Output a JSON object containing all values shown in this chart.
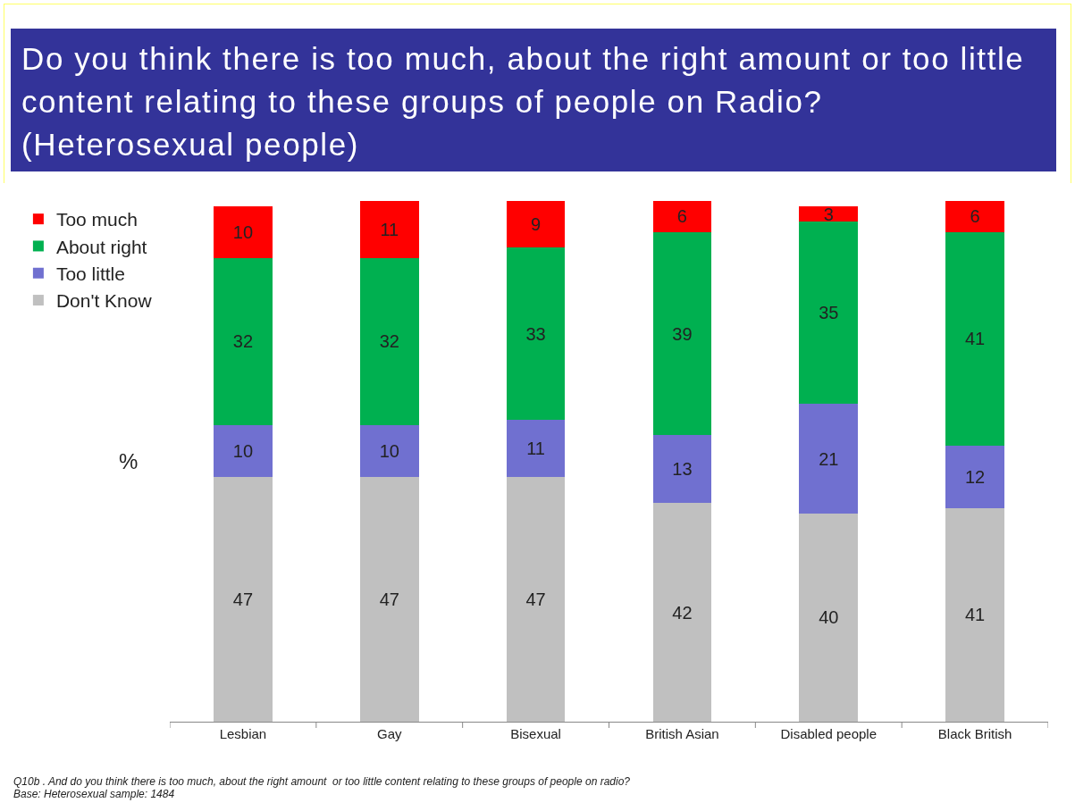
{
  "chart_data": {
    "type": "bar",
    "stacked": true,
    "title": "Do you think there is too much, about the right amount or too little content relating to these groups of people on Radio? (Heterosexual people)",
    "ylabel": "%",
    "categories": [
      "Lesbian",
      "Gay",
      "Bisexual",
      "British Asian",
      "Disabled people",
      "Black British"
    ],
    "series": [
      {
        "name": "Don't Know",
        "color": "#c0c0c0",
        "values": [
          47,
          47,
          47,
          42,
          40,
          41
        ]
      },
      {
        "name": "Too little",
        "color": "#7070d0",
        "values": [
          10,
          10,
          11,
          13,
          21,
          12
        ]
      },
      {
        "name": "About right",
        "color": "#00b050",
        "values": [
          32,
          32,
          33,
          39,
          35,
          41
        ]
      },
      {
        "name": "Too much",
        "color": "#ff0000",
        "values": [
          10,
          11,
          9,
          6,
          3,
          6
        ]
      }
    ],
    "ylim": [
      0,
      100
    ],
    "tick_labels": "x",
    "data_labels": true,
    "legend": "top left",
    "annotations": [
      "Q10b . And do you think there is too much, about the right amount  or too little content relating to these groups of people on radio?",
      "Base: Heterosexual sample: 1484"
    ]
  }
}
